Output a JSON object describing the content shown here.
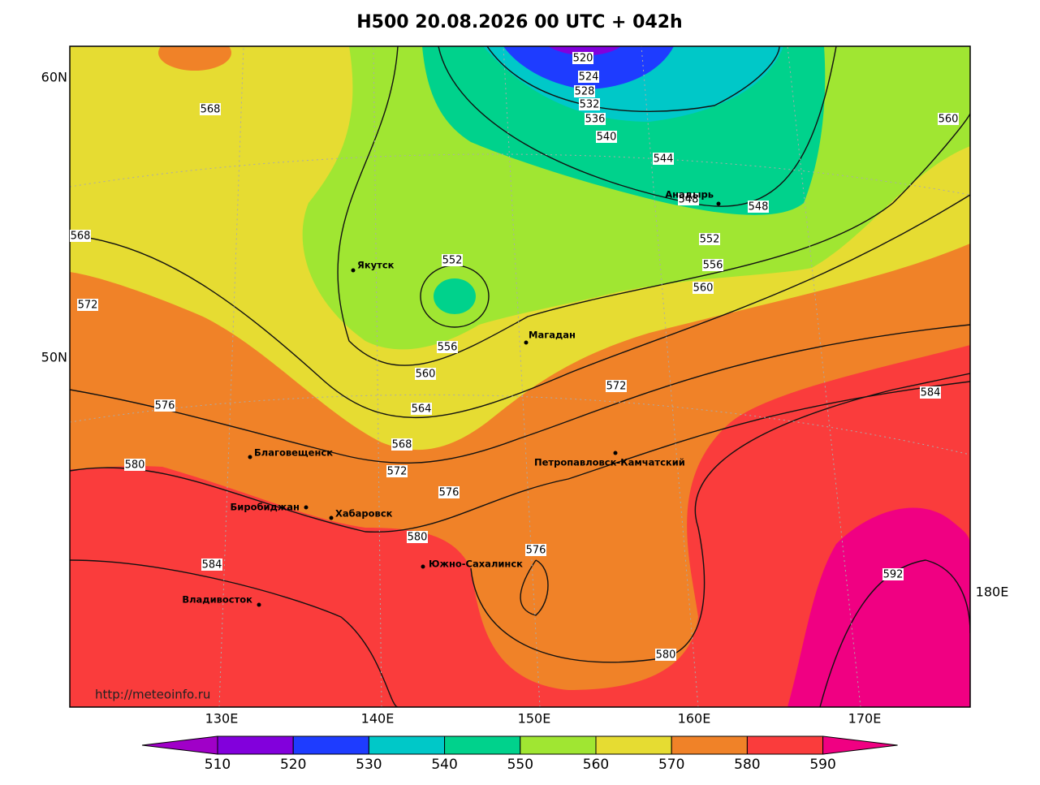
{
  "title": "H500  20.08.2026 00 UTC + 042h",
  "url": "http://meteoinfo.ru",
  "lat_labels": [
    "60N",
    "50N"
  ],
  "lon_labels": [
    "130E",
    "140E",
    "150E",
    "160E",
    "170E",
    "180E"
  ],
  "contour_labels": [
    520,
    524,
    528,
    532,
    536,
    540,
    544,
    548,
    548,
    552,
    556,
    560,
    560,
    568,
    568,
    572,
    552,
    556,
    560,
    564,
    568,
    572,
    576,
    576,
    580,
    580,
    576,
    584,
    584,
    572,
    592,
    580
  ],
  "cities": [
    "Якутск",
    "Магадан",
    "Анадырь",
    "Благовещенск",
    "Биробиджан",
    "Хабаровск",
    "Петропавловск-Камчатский",
    "Южно-Сахалинск",
    "Владивосток"
  ],
  "colorbar": {
    "levels": [
      510,
      520,
      530,
      540,
      550,
      560,
      570,
      580,
      590
    ],
    "colors": [
      "#a000c8",
      "#8200dc",
      "#1e3cff",
      "#00c8c8",
      "#00d28c",
      "#a0e632",
      "#e6dc32",
      "#f08228",
      "#fa3c3c",
      "#f00082"
    ]
  }
}
